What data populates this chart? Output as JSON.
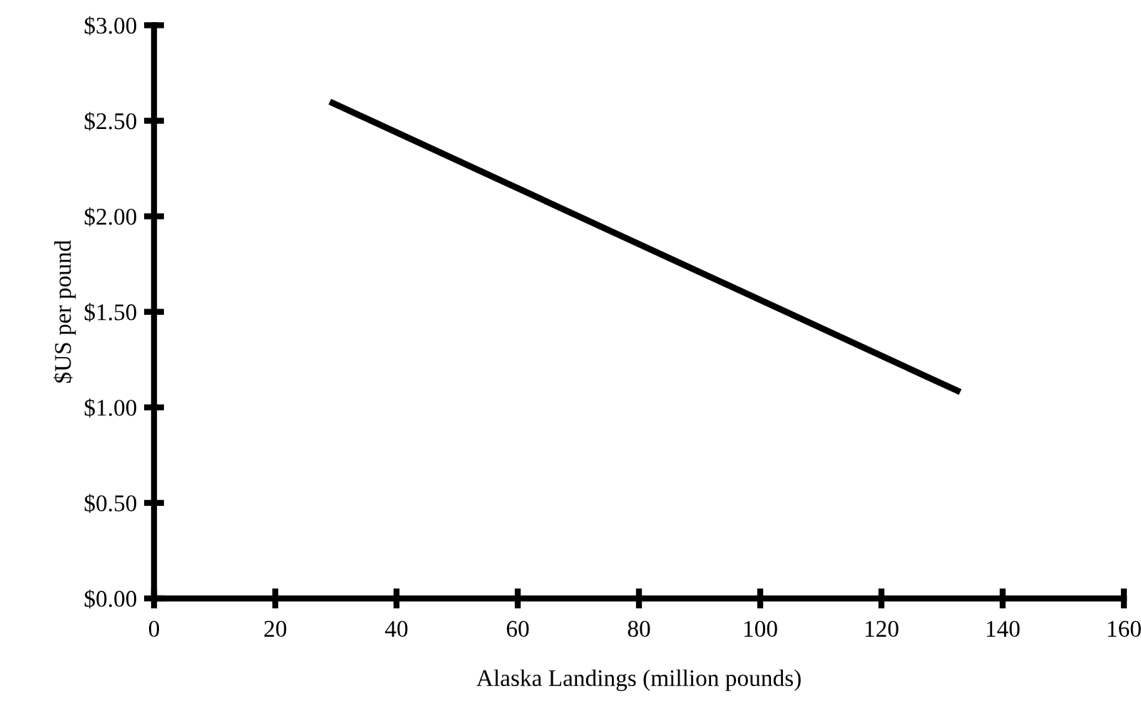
{
  "chart_data": {
    "type": "line",
    "xlabel": "Alaska Landings (million pounds)",
    "ylabel": "$US per pound",
    "x": [
      29,
      133
    ],
    "series": [
      {
        "color": "#000000",
        "values": [
          2.6,
          1.08
        ]
      }
    ],
    "xlim": [
      0,
      160
    ],
    "xticks": [
      0,
      20,
      40,
      60,
      80,
      100,
      120,
      140,
      160
    ],
    "ylim": [
      0,
      3
    ],
    "yticks": [
      {
        "value": 0,
        "label": "$0.00"
      },
      {
        "value": 0.5,
        "label": "$0.50"
      },
      {
        "value": 1,
        "label": "$1.00"
      },
      {
        "value": 1.5,
        "label": "$1.50"
      },
      {
        "value": 2,
        "label": "$2.00"
      },
      {
        "value": 2.5,
        "label": "$2.50"
      },
      {
        "value": 3,
        "label": "$3.00"
      }
    ],
    "grid": false,
    "legend": false,
    "marker": "none",
    "line_style": "solid"
  }
}
